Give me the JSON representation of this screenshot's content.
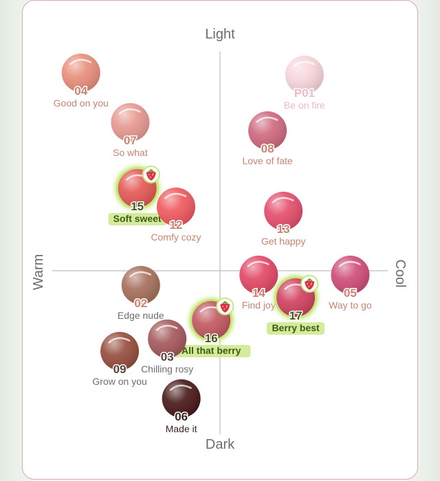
{
  "chart_data": {
    "type": "scatter",
    "axes": {
      "top": "Light",
      "bottom": "Dark",
      "left": "Warm",
      "right": "Cool"
    },
    "xlim": [
      -1,
      1
    ],
    "ylim": [
      -1,
      1
    ],
    "grid": false,
    "points": [
      {
        "num": "04",
        "name": "Good on you",
        "x": -0.79,
        "y": 0.96,
        "color": "#e98f7c",
        "num_color": "#c9836f",
        "label_color": "#c9836f",
        "highlight": false
      },
      {
        "num": "07",
        "name": "So what",
        "x": -0.51,
        "y": 0.72,
        "color": "#e79a92",
        "num_color": "#c9836f",
        "label_color": "#c9836f",
        "highlight": false
      },
      {
        "num": "15",
        "name": "Soft sweet",
        "x": -0.47,
        "y": 0.4,
        "color": "#e35a57",
        "num_color": "#3f5a16",
        "label_color": "#3f5a16",
        "highlight": true
      },
      {
        "num": "12",
        "name": "Comfy cozy",
        "x": -0.25,
        "y": 0.31,
        "color": "#ee5b5f",
        "num_color": "#c9836f",
        "label_color": "#c9836f",
        "highlight": false
      },
      {
        "num": "P01",
        "name": "Be on fire",
        "x": 0.48,
        "y": 0.95,
        "color": "#f7d5db",
        "num_color": "#eeb9c3",
        "label_color": "#eeb9c3",
        "highlight": false
      },
      {
        "num": "08",
        "name": "Love of fate",
        "x": 0.27,
        "y": 0.68,
        "color": "#cf6a80",
        "num_color": "#c9836f",
        "label_color": "#c9836f",
        "highlight": false
      },
      {
        "num": "13",
        "name": "Get happy",
        "x": 0.36,
        "y": 0.29,
        "color": "#e44f6e",
        "num_color": "#c9836f",
        "label_color": "#c9836f",
        "highlight": false
      },
      {
        "num": "05",
        "name": "Way to go",
        "x": 0.74,
        "y": -0.02,
        "color": "#cf4f7a",
        "num_color": "#c9836f",
        "label_color": "#c9836f",
        "highlight": false
      },
      {
        "num": "14",
        "name": "Find joy",
        "x": 0.22,
        "y": -0.02,
        "color": "#e24966",
        "num_color": "#c9836f",
        "label_color": "#c9836f",
        "highlight": false
      },
      {
        "num": "17",
        "name": "Berry best",
        "x": 0.43,
        "y": -0.13,
        "color": "#d04462",
        "num_color": "#3f5a16",
        "label_color": "#3f5a16",
        "highlight": true
      },
      {
        "num": "02",
        "name": "Edge nude",
        "x": -0.45,
        "y": -0.07,
        "color": "#a6705c",
        "num_color": "#c9836f",
        "label_color": "#6d6d6d",
        "highlight": false
      },
      {
        "num": "16",
        "name": "All that berry",
        "x": -0.05,
        "y": -0.24,
        "color": "#c25a62",
        "num_color": "#3f5a16",
        "label_color": "#3f5a16",
        "highlight": true
      },
      {
        "num": "03",
        "name": "Chilling rosy",
        "x": -0.3,
        "y": -0.33,
        "color": "#a55a5c",
        "num_color": "#5a3f3a",
        "label_color": "#6d6d6d",
        "highlight": false
      },
      {
        "num": "09",
        "name": "Grow on you",
        "x": -0.57,
        "y": -0.39,
        "color": "#96503f",
        "num_color": "#5a3f3a",
        "label_color": "#6d6d6d",
        "highlight": false
      },
      {
        "num": "06",
        "name": "Made it",
        "x": -0.22,
        "y": -0.62,
        "color": "#4a1b1c",
        "num_color": "#3a2420",
        "label_color": "#3a2420",
        "highlight": false
      }
    ]
  },
  "colors": {
    "card_border": "#dba7ad",
    "axis_line": "#bdbdbd",
    "highlight_glow": "#c8e87c",
    "highlight_text_bg": "#cde88a"
  },
  "icons": {
    "highlight_badge": "strawberry-icon"
  }
}
